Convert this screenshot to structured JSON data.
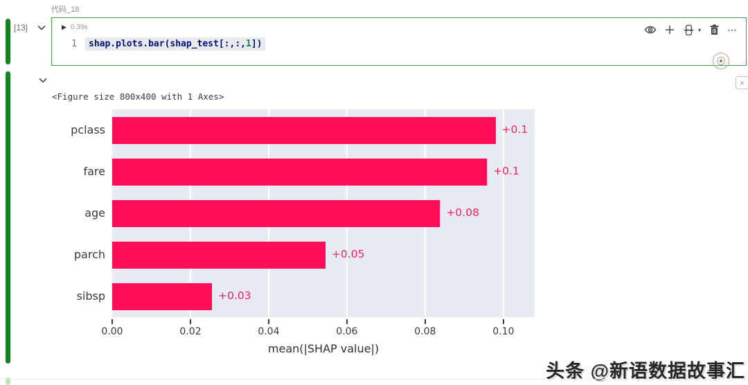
{
  "cell": {
    "label": "代码_18",
    "execution_count": "[13]",
    "play_icon": "▶",
    "duration": "0.39s",
    "line_number": "1",
    "code_prefix": "shap.plots.bar(shap_test[:,:,",
    "code_number": "1",
    "code_suffix": "])",
    "toolbar": {
      "more_label": "⋯",
      "caret": "▾"
    }
  },
  "output": {
    "figure_text": "<Figure size 800x400 with 1 Axes>",
    "close_label": "×"
  },
  "chart_data": {
    "type": "bar",
    "orientation": "horizontal",
    "title": "",
    "categories": [
      "pclass",
      "fare",
      "age",
      "parch",
      "sibsp"
    ],
    "values": [
      0.098,
      0.0958,
      0.0838,
      0.0545,
      0.0255
    ],
    "bar_labels": [
      "+0.1",
      "+0.1",
      "+0.08",
      "+0.05",
      "+0.03"
    ],
    "xlabel": "mean(|SHAP value|)",
    "x_ticks": [
      "0.00",
      "0.02",
      "0.04",
      "0.06",
      "0.08",
      "0.10"
    ],
    "x_tick_values": [
      0,
      0.02,
      0.04,
      0.06,
      0.08,
      0.1
    ],
    "xlim": [
      0,
      0.108
    ],
    "grid": true,
    "legend": false,
    "bar_color": "#ff0d57",
    "label_color": "#fb1d5c",
    "plot_bg": "#e9ebf2"
  },
  "watermark": "头条 @新语数据故事汇"
}
